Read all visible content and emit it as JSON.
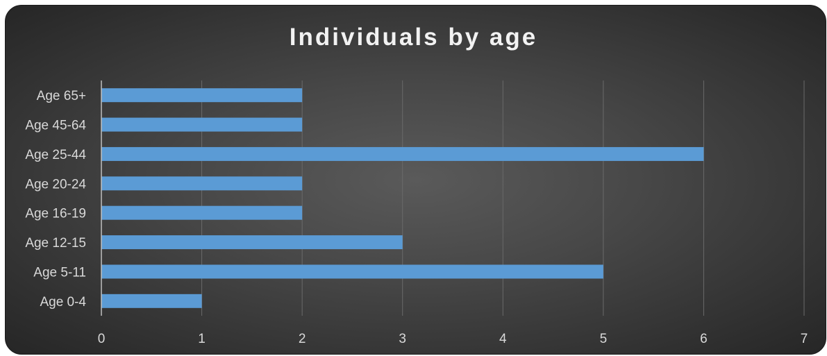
{
  "chart_data": {
    "type": "bar",
    "orientation": "horizontal",
    "title": "Individuals by age",
    "categories": [
      "Age 0-4",
      "Age 5-11",
      "Age 12-15",
      "Age 16-19",
      "Age 20-24",
      "Age 25-44",
      "Age 45-64",
      "Age 65+"
    ],
    "values": [
      1,
      5,
      3,
      2,
      2,
      6,
      2,
      2
    ],
    "xlim": [
      0,
      7
    ],
    "xticks": [
      0,
      1,
      2,
      3,
      4,
      5,
      6,
      7
    ],
    "xlabel": "",
    "ylabel": "",
    "grid": true,
    "legend": "none",
    "colors": {
      "bar": "#5b9bd5",
      "background": "#404040",
      "text": "#d9d9d9",
      "title": "#f2f2f2",
      "gridline": "#6a6a6a"
    }
  }
}
